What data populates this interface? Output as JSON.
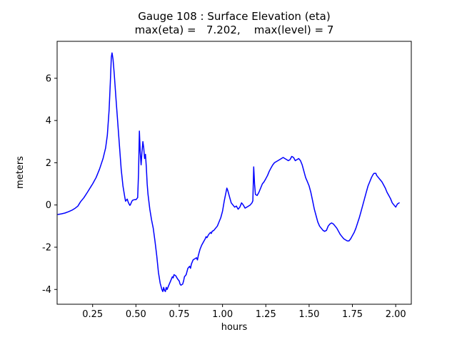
{
  "chart_data": {
    "type": "line",
    "title": "Gauge 108 : Surface Elevation (eta)",
    "subtitle": "max(eta) =   7.202,    max(level) = 7",
    "xlabel": "hours",
    "ylabel": "meters",
    "xlim": [
      0.045,
      2.09
    ],
    "ylim": [
      -4.7,
      7.75
    ],
    "xticks": [
      0.25,
      0.5,
      0.75,
      1.0,
      1.25,
      1.5,
      1.75,
      2.0
    ],
    "xtick_labels": [
      "0.25",
      "0.50",
      "0.75",
      "1.00",
      "1.25",
      "1.50",
      "1.75",
      "2.00"
    ],
    "yticks": [
      -4,
      -2,
      0,
      2,
      4,
      6
    ],
    "ytick_labels": [
      "-4",
      "-2",
      "0",
      "2",
      "4",
      "6"
    ],
    "grid": false,
    "legend": false,
    "line_color": "#0000ff",
    "axis_color": "#000000",
    "max_eta": 7.202,
    "max_level": 7,
    "series": [
      {
        "name": "eta",
        "x": [
          0.05,
          0.07,
          0.09,
          0.11,
          0.13,
          0.15,
          0.165,
          0.18,
          0.2,
          0.22,
          0.25,
          0.27,
          0.29,
          0.31,
          0.325,
          0.335,
          0.345,
          0.352,
          0.358,
          0.362,
          0.368,
          0.375,
          0.385,
          0.395,
          0.405,
          0.415,
          0.425,
          0.435,
          0.44,
          0.45,
          0.455,
          0.46,
          0.465,
          0.47,
          0.475,
          0.48,
          0.49,
          0.5,
          0.51,
          0.515,
          0.52,
          0.525,
          0.53,
          0.535,
          0.54,
          0.545,
          0.55,
          0.555,
          0.56,
          0.565,
          0.57,
          0.58,
          0.59,
          0.6,
          0.61,
          0.62,
          0.63,
          0.64,
          0.65,
          0.655,
          0.66,
          0.665,
          0.67,
          0.675,
          0.68,
          0.69,
          0.7,
          0.71,
          0.715,
          0.72,
          0.73,
          0.74,
          0.75,
          0.755,
          0.76,
          0.77,
          0.775,
          0.78,
          0.79,
          0.8,
          0.81,
          0.815,
          0.82,
          0.83,
          0.84,
          0.85,
          0.855,
          0.86,
          0.87,
          0.88,
          0.89,
          0.9,
          0.905,
          0.91,
          0.92,
          0.93,
          0.935,
          0.94,
          0.95,
          0.96,
          0.97,
          0.98,
          0.99,
          1.0,
          1.01,
          1.02,
          1.025,
          1.03,
          1.04,
          1.05,
          1.06,
          1.07,
          1.08,
          1.09,
          1.1,
          1.11,
          1.12,
          1.13,
          1.14,
          1.15,
          1.16,
          1.17,
          1.175,
          1.18,
          1.185,
          1.19,
          1.2,
          1.21,
          1.22,
          1.23,
          1.24,
          1.25,
          1.26,
          1.27,
          1.28,
          1.29,
          1.3,
          1.31,
          1.32,
          1.33,
          1.34,
          1.35,
          1.36,
          1.37,
          1.38,
          1.39,
          1.4,
          1.41,
          1.42,
          1.43,
          1.44,
          1.45,
          1.46,
          1.47,
          1.48,
          1.49,
          1.5,
          1.51,
          1.52,
          1.53,
          1.54,
          1.55,
          1.56,
          1.57,
          1.58,
          1.59,
          1.6,
          1.61,
          1.62,
          1.63,
          1.64,
          1.65,
          1.66,
          1.67,
          1.68,
          1.69,
          1.7,
          1.71,
          1.72,
          1.73,
          1.74,
          1.75,
          1.76,
          1.77,
          1.78,
          1.79,
          1.8,
          1.81,
          1.82,
          1.83,
          1.84,
          1.85,
          1.86,
          1.87,
          1.875,
          1.885,
          1.89,
          1.9,
          1.91,
          1.92,
          1.93,
          1.94,
          1.95,
          1.96,
          1.97,
          1.98,
          1.99,
          2.0,
          2.01,
          2.02
        ],
        "y": [
          -0.45,
          -0.42,
          -0.38,
          -0.32,
          -0.25,
          -0.15,
          -0.05,
          0.15,
          0.35,
          0.6,
          1.0,
          1.3,
          1.7,
          2.2,
          2.7,
          3.3,
          4.5,
          5.8,
          7.0,
          7.2,
          6.9,
          6.2,
          5.0,
          3.9,
          2.8,
          1.7,
          0.9,
          0.4,
          0.18,
          0.28,
          0.15,
          0.05,
          -0.02,
          0.05,
          0.15,
          0.22,
          0.25,
          0.25,
          0.35,
          1.5,
          3.5,
          2.5,
          1.9,
          2.5,
          3.0,
          2.7,
          2.2,
          2.4,
          1.8,
          1.0,
          0.5,
          -0.2,
          -0.7,
          -1.1,
          -1.7,
          -2.4,
          -3.2,
          -3.7,
          -4.0,
          -4.1,
          -3.9,
          -4.05,
          -4.1,
          -3.9,
          -4.0,
          -3.8,
          -3.6,
          -3.4,
          -3.45,
          -3.3,
          -3.35,
          -3.5,
          -3.6,
          -3.75,
          -3.8,
          -3.75,
          -3.6,
          -3.4,
          -3.3,
          -3.0,
          -2.9,
          -3.0,
          -2.8,
          -2.6,
          -2.55,
          -2.5,
          -2.6,
          -2.4,
          -2.1,
          -1.9,
          -1.75,
          -1.6,
          -1.5,
          -1.55,
          -1.4,
          -1.3,
          -1.35,
          -1.25,
          -1.2,
          -1.1,
          -1.0,
          -0.8,
          -0.6,
          -0.3,
          0.2,
          0.6,
          0.8,
          0.7,
          0.4,
          0.1,
          0.0,
          -0.1,
          -0.05,
          -0.2,
          -0.1,
          0.1,
          0.0,
          -0.15,
          -0.1,
          -0.05,
          0.0,
          0.1,
          0.2,
          1.8,
          1.0,
          0.5,
          0.45,
          0.6,
          0.8,
          1.0,
          1.1,
          1.25,
          1.4,
          1.6,
          1.75,
          1.9,
          2.0,
          2.05,
          2.1,
          2.15,
          2.2,
          2.25,
          2.2,
          2.15,
          2.1,
          2.15,
          2.3,
          2.25,
          2.1,
          2.15,
          2.2,
          2.1,
          1.9,
          1.6,
          1.3,
          1.1,
          0.9,
          0.6,
          0.2,
          -0.2,
          -0.5,
          -0.8,
          -1.0,
          -1.1,
          -1.2,
          -1.25,
          -1.2,
          -1.0,
          -0.9,
          -0.85,
          -0.9,
          -1.0,
          -1.1,
          -1.25,
          -1.4,
          -1.5,
          -1.6,
          -1.65,
          -1.7,
          -1.7,
          -1.6,
          -1.45,
          -1.3,
          -1.1,
          -0.85,
          -0.6,
          -0.3,
          0.0,
          0.3,
          0.6,
          0.9,
          1.1,
          1.3,
          1.45,
          1.5,
          1.5,
          1.4,
          1.3,
          1.2,
          1.1,
          0.95,
          0.8,
          0.6,
          0.45,
          0.3,
          0.1,
          0.0,
          -0.1,
          0.05,
          0.1
        ]
      }
    ]
  }
}
